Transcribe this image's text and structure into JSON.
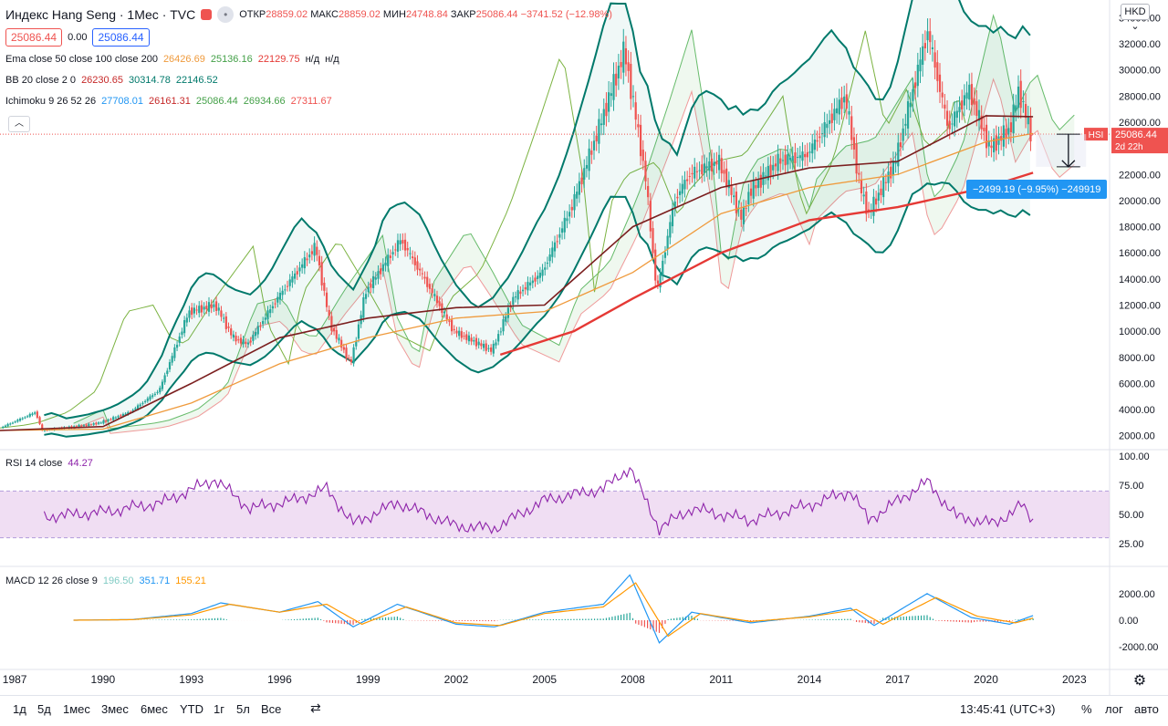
{
  "header": {
    "title": "Индекс Hang Seng · 1Мес · TVC",
    "ohlc": [
      {
        "label": "ОТКР",
        "value": "28859.02"
      },
      {
        "label": "МАКС",
        "value": "28859.02"
      },
      {
        "label": "МИН",
        "value": "24748.84"
      },
      {
        "label": "ЗАКР",
        "value": "25086.44"
      }
    ],
    "change": "−3741.52 (−12.98%)",
    "bid": "25086.44",
    "spread": "0.00",
    "ask": "25086.44",
    "currency": "HKD"
  },
  "indicators": {
    "ema": {
      "label": "Ema close 50 close 100 close 200",
      "values": [
        "26426.69",
        "25136.16",
        "22129.75",
        "н/д",
        "н/д"
      ]
    },
    "bb": {
      "label": "BB 20 close 2 0",
      "values": [
        "26230.65",
        "30314.78",
        "22146.52"
      ]
    },
    "ichimoku": {
      "label": "Ichimoku 9 26 52 26",
      "values": [
        "27708.01",
        "26161.31",
        "25086.44",
        "26934.66",
        "27311.67"
      ]
    },
    "rsi": {
      "label": "RSI 14 close",
      "value": "44.27"
    },
    "macd": {
      "label": "MACD 12 26 close 9",
      "values": [
        "196.50",
        "351.71",
        "155.21"
      ]
    }
  },
  "price_tag": {
    "symbol": "HSI",
    "price": "25086.44",
    "countdown": "2d 22h"
  },
  "measure_label": "−2499.19 (−9.95%) −249919",
  "colors": {
    "up": "#26a69a",
    "down": "#ef5350",
    "ema50": "#7b1f1f",
    "ema100": "#ef9a3c",
    "ema200": "#e53935",
    "bb": "#00796b",
    "rsi": "#8e24aa",
    "macd": "#2196f3",
    "signal": "#ff9800",
    "spanA": "#66bb6a",
    "spanB": "#ef9a9a"
  },
  "bottom_bar": {
    "timeframes": [
      "1д",
      "5д",
      "1мес",
      "3мес",
      "6мес",
      "YTD",
      "1г",
      "5л",
      "Все"
    ],
    "clock": "13:45:41 (UTC+3)",
    "percent": "%",
    "log": "лог",
    "auto": "авто"
  },
  "icons": [
    "flag-icon",
    "more-icon",
    "collapse-icon",
    "settings-gear-icon",
    "compare-icon"
  ],
  "chart_data": {
    "type": "line",
    "title": "Индекс Hang Seng · 1Мес · TVC",
    "x_ticks": [
      "1987",
      "1990",
      "1993",
      "1996",
      "1999",
      "2002",
      "2005",
      "2008",
      "2011",
      "2014",
      "2017",
      "2020",
      "2023"
    ],
    "y_ticks": [
      "34000.00",
      "32000.00",
      "30000.00",
      "28000.00",
      "26000.00",
      "24000.00",
      "22000.00",
      "20000.00",
      "18000.00",
      "16000.00",
      "14000.00",
      "12000.00",
      "10000.00",
      "8000.00",
      "6000.00",
      "4000.00",
      "2000.00"
    ],
    "ylim": [
      1000,
      34800
    ],
    "xlim": [
      1986.5,
      2024.2
    ],
    "series": [
      {
        "name": "HSI",
        "x": [
          1986.5,
          1987.8,
          1988,
          1989.5,
          1990,
          1991,
          1992,
          1993,
          1993.9,
          1994.5,
          1995,
          1996,
          1997.3,
          1997.8,
          1998.5,
          1999,
          2000.2,
          2001,
          2002,
          2003.3,
          2004,
          2005,
          2006,
          2007,
          2007.8,
          2008.5,
          2008.9,
          2009.5,
          2010,
          2011,
          2011.8,
          2012,
          2013,
          2014,
          2015.3,
          2015.8,
          2016.1,
          2017,
          2018.1,
          2018.8,
          2019.5,
          2020.2,
          2020.9,
          2021.2,
          2021.6
        ],
        "y": [
          2500,
          3800,
          2400,
          2800,
          3000,
          3800,
          5500,
          11500,
          12000,
          9500,
          9000,
          12500,
          16500,
          10500,
          7500,
          13000,
          17000,
          14000,
          10000,
          8500,
          12500,
          14500,
          19500,
          26000,
          31500,
          22000,
          13000,
          20000,
          22000,
          23000,
          18500,
          20500,
          23000,
          23500,
          28000,
          21000,
          19000,
          23000,
          33000,
          25500,
          28500,
          24000,
          25500,
          28500,
          25086
        ]
      },
      {
        "name": "Ema 50",
        "x": [
          1986.5,
          1990,
          1993,
          1996,
          1999,
          2002,
          2005,
          2008,
          2011,
          2014,
          2017,
          2020,
          2021.6
        ],
        "y": [
          2400,
          2700,
          6000,
          9500,
          11000,
          11800,
          12000,
          18000,
          21000,
          22500,
          23000,
          26500,
          26427
        ]
      },
      {
        "name": "Ema 100",
        "x": [
          1986.5,
          1990,
          1993,
          1996,
          1999,
          2002,
          2005,
          2008,
          2011,
          2014,
          2017,
          2020,
          2021.6
        ],
        "y": [
          2400,
          2500,
          4500,
          7500,
          9500,
          11000,
          11500,
          14500,
          19000,
          21000,
          22000,
          24500,
          25136
        ]
      },
      {
        "name": "Ema 200",
        "x": [
          2003.5,
          2006,
          2008,
          2011,
          2014,
          2017,
          2020,
          2021.6
        ],
        "y": [
          8200,
          10000,
          12500,
          16000,
          18500,
          19500,
          21000,
          22130
        ]
      },
      {
        "name": "RSI",
        "x": [
          1988,
          1990,
          1992,
          1993.8,
          1995,
          1996.5,
          1997.6,
          1998.5,
          2000,
          2002,
          2003.3,
          2005,
          2007,
          2007.9,
          2008.9,
          2010,
          2012,
          2014,
          2015.4,
          2016,
          2018,
          2019,
          2020.3,
          2021.2,
          2021.6
        ],
        "y": [
          48,
          52,
          60,
          80,
          55,
          62,
          72,
          42,
          60,
          40,
          38,
          62,
          72,
          90,
          38,
          55,
          45,
          58,
          70,
          45,
          78,
          48,
          42,
          58,
          44.27
        ]
      },
      {
        "name": "MACD",
        "x": [
          1989,
          1991,
          1993,
          1994,
          1996,
          1997.3,
          1998.5,
          2000,
          2002,
          2003.3,
          2005,
          2007,
          2007.9,
          2008.9,
          2010,
          2012,
          2014,
          2015.4,
          2016.2,
          2018,
          2019.5,
          2020.8,
          2021.6
        ],
        "y": [
          0,
          50,
          500,
          1300,
          600,
          1400,
          -500,
          1200,
          -300,
          -500,
          600,
          1200,
          3400,
          -1700,
          600,
          -200,
          300,
          900,
          -400,
          2000,
          200,
          -300,
          352
        ]
      },
      {
        "name": "Signal",
        "x": [
          1989,
          1991,
          1993,
          1994.3,
          1996,
          1997.6,
          1998.8,
          2000.3,
          2002,
          2003.5,
          2005,
          2007,
          2008.1,
          2009.2,
          2010.3,
          2012,
          2014,
          2015.6,
          2016.5,
          2018.3,
          2019.7,
          2021,
          2021.6
        ],
        "y": [
          0,
          40,
          400,
          1200,
          600,
          1200,
          -300,
          1000,
          -200,
          -400,
          500,
          1000,
          2800,
          -1200,
          500,
          -100,
          250,
          800,
          -300,
          1700,
          300,
          -200,
          155
        ]
      }
    ]
  }
}
